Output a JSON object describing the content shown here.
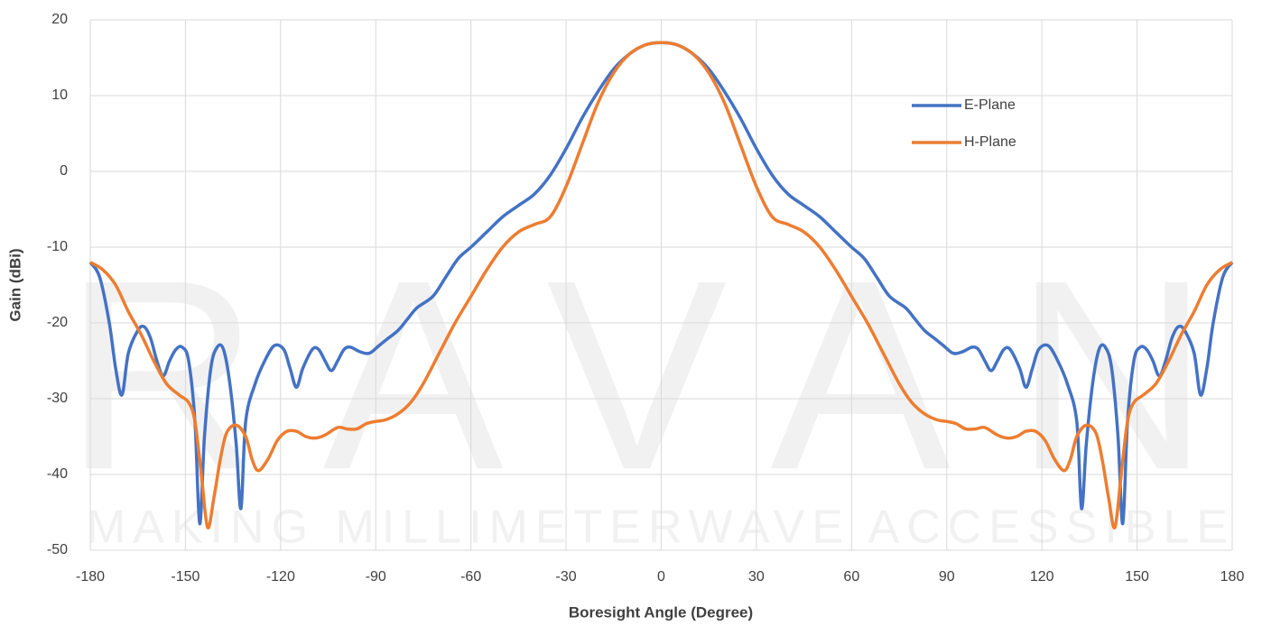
{
  "chart_data": {
    "type": "line",
    "xlabel": "Boresight Angle (Degree)",
    "ylabel": "Gain (dBi)",
    "watermark": {
      "logo": "ERAVANT",
      "tagline": "MAKING MILLIMETERWAVE ACCESSIBLE"
    },
    "xlim": [
      -180,
      180
    ],
    "xticks": [
      -180,
      -150,
      -120,
      -90,
      -60,
      -30,
      0,
      30,
      60,
      90,
      120,
      150,
      180
    ],
    "ylim": [
      -50,
      20
    ],
    "yticks": [
      -50,
      -40,
      -30,
      -20,
      -10,
      0,
      10,
      20
    ],
    "grid": true,
    "legend": "upper-right",
    "series": [
      {
        "name": "E-Plane",
        "color": "#4472c4",
        "x": [
          -180,
          -177,
          -174,
          -172,
          -170,
          -168,
          -165,
          -163,
          -161,
          -159,
          -157,
          -155,
          -153,
          -151,
          -149,
          -147,
          -145.5,
          -144,
          -142,
          -140,
          -138,
          -136,
          -134,
          -132.5,
          -131,
          -128,
          -125,
          -122,
          -119,
          -117,
          -115,
          -113,
          -110,
          -108,
          -106,
          -104,
          -102,
          -100,
          -98,
          -95,
          -92,
          -89,
          -86,
          -83,
          -80,
          -77,
          -72,
          -68,
          -64,
          -60,
          -55,
          -50,
          -45,
          -40,
          -35,
          -30,
          -25,
          -20,
          -15,
          -10,
          -5,
          0,
          5,
          10,
          15,
          20,
          25,
          30,
          35,
          40,
          45,
          50,
          55,
          60,
          64,
          68,
          72,
          77,
          80,
          83,
          86,
          89,
          92,
          95,
          98,
          100,
          102,
          104,
          106,
          108,
          110,
          113,
          115,
          117,
          119,
          122,
          125,
          128,
          131,
          132.5,
          134,
          136,
          138,
          140,
          142,
          144,
          145.5,
          147,
          149,
          151,
          153,
          155,
          157,
          159,
          161,
          163,
          165,
          168,
          170,
          172,
          174,
          177,
          180
        ],
        "values": [
          -12,
          -14,
          -20,
          -26,
          -29.5,
          -24,
          -21,
          -20.5,
          -22,
          -25,
          -27,
          -25,
          -23.5,
          -23.2,
          -25,
          -33,
          -46.5,
          -35,
          -26,
          -23.2,
          -23.5,
          -28,
          -36,
          -44.5,
          -33,
          -28,
          -25,
          -23,
          -23.5,
          -26,
          -28.5,
          -26,
          -23.5,
          -23.5,
          -25,
          -26.3,
          -25,
          -23.5,
          -23.2,
          -23.8,
          -24,
          -23,
          -22,
          -21,
          -19.5,
          -18,
          -16.5,
          -14,
          -11.5,
          -10,
          -8,
          -6,
          -4.5,
          -3,
          -0.5,
          3,
          7,
          10.5,
          13.5,
          15.5,
          16.7,
          17,
          16.7,
          15.5,
          13.5,
          10.5,
          7,
          3,
          -0.5,
          -3,
          -4.5,
          -6,
          -8,
          -10,
          -11.5,
          -14,
          -16.5,
          -18,
          -19.5,
          -21,
          -22,
          -23,
          -24,
          -23.8,
          -23.2,
          -23.5,
          -25,
          -26.3,
          -25,
          -23.5,
          -23.5,
          -26,
          -28.5,
          -26,
          -23.5,
          -23,
          -25,
          -28,
          -33,
          -44.5,
          -36,
          -28,
          -23.5,
          -23.2,
          -26,
          -35,
          -46.5,
          -33,
          -25,
          -23.2,
          -23.5,
          -25,
          -27,
          -25,
          -22,
          -20.5,
          -21,
          -24,
          -29.5,
          -26,
          -20,
          -14,
          -12
        ]
      },
      {
        "name": "H-Plane",
        "color": "#ed7d31",
        "x": [
          -180,
          -176,
          -172,
          -168,
          -164,
          -160,
          -156,
          -152,
          -149,
          -147,
          -145,
          -143,
          -141,
          -139,
          -137,
          -134,
          -131,
          -129,
          -127,
          -124,
          -121,
          -118,
          -115,
          -112,
          -109,
          -106,
          -102,
          -99,
          -96,
          -93,
          -90,
          -87,
          -83,
          -79,
          -75,
          -70,
          -65,
          -60,
          -55,
          -50,
          -45,
          -40,
          -35,
          -30,
          -25,
          -20,
          -15,
          -10,
          -5,
          0,
          5,
          10,
          15,
          20,
          25,
          30,
          35,
          40,
          45,
          50,
          55,
          60,
          65,
          70,
          75,
          79,
          83,
          87,
          90,
          93,
          96,
          99,
          102,
          106,
          109,
          112,
          115,
          118,
          121,
          124,
          127,
          129,
          131,
          134,
          137,
          139,
          141,
          143,
          145,
          147,
          149,
          152,
          156,
          160,
          164,
          168,
          172,
          176,
          180
        ],
        "values": [
          -12,
          -13,
          -15,
          -18.5,
          -21.5,
          -25,
          -28,
          -29.5,
          -30.5,
          -33,
          -40,
          -47,
          -43,
          -38,
          -34.5,
          -33.5,
          -35,
          -38,
          -39.5,
          -38,
          -35.5,
          -34.3,
          -34.3,
          -35,
          -35.2,
          -34.8,
          -33.8,
          -34,
          -34,
          -33.3,
          -33,
          -32.8,
          -32,
          -30.5,
          -28,
          -24,
          -20,
          -16.5,
          -13,
          -10,
          -8,
          -7,
          -6,
          -2,
          3.5,
          9,
          13,
          15.5,
          16.7,
          17,
          16.7,
          15.5,
          13,
          9,
          3.5,
          -2,
          -6,
          -7,
          -8,
          -10,
          -13,
          -16.5,
          -20,
          -24,
          -28,
          -30.5,
          -32,
          -32.8,
          -33,
          -33.3,
          -34,
          -34,
          -33.8,
          -34.8,
          -35.2,
          -35,
          -34.3,
          -34.3,
          -35.5,
          -38,
          -39.5,
          -38,
          -35,
          -33.5,
          -34.5,
          -38,
          -43,
          -47,
          -40,
          -33,
          -30.5,
          -29.5,
          -28,
          -25,
          -21.5,
          -18.5,
          -15,
          -13,
          -12
        ]
      }
    ]
  }
}
